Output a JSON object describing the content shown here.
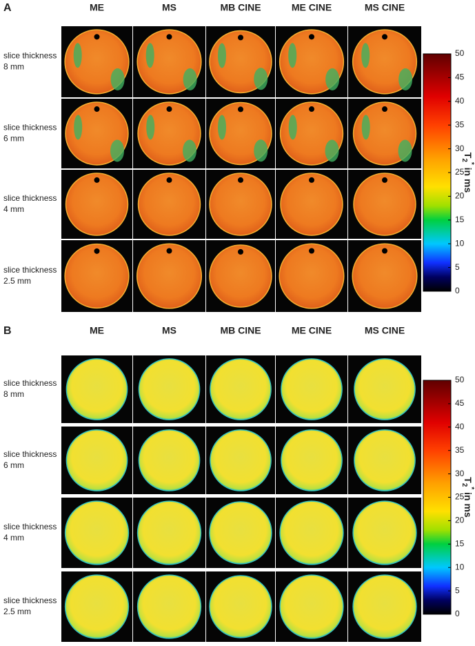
{
  "panels": [
    {
      "label": "A",
      "columns": [
        "ME",
        "MS",
        "MB CINE",
        "ME CINE",
        "MS CINE"
      ],
      "rows": [
        [
          "slice thickness",
          "8 mm"
        ],
        [
          "slice thickness",
          "6 mm"
        ],
        [
          "slice thickness",
          "4 mm"
        ],
        [
          "slice thickness",
          "2.5 mm"
        ]
      ],
      "colorbar": {
        "label": {
          "main": "T",
          "sub": "2",
          "sup": "*",
          "rest": " in ms"
        },
        "lim": [
          0,
          50
        ],
        "ticks": [
          0,
          5,
          10,
          15,
          20,
          25,
          30,
          35,
          40,
          45,
          50
        ]
      }
    },
    {
      "label": "B",
      "columns": [
        "ME",
        "MS",
        "MB CINE",
        "ME CINE",
        "MS CINE"
      ],
      "rows": [
        [
          "slice thickness",
          "8 mm"
        ],
        [
          "slice thickness",
          "6 mm"
        ],
        [
          "slice thickness",
          "4 mm"
        ],
        [
          "slice thickness",
          "2.5 mm"
        ]
      ],
      "colorbar": {
        "label": {
          "main": "T",
          "sub": "2",
          "sup": "*",
          "rest": " in ms"
        },
        "lim": [
          0,
          50
        ],
        "ticks": [
          0,
          5,
          10,
          15,
          20,
          25,
          30,
          35,
          40,
          45,
          50
        ]
      }
    }
  ]
}
